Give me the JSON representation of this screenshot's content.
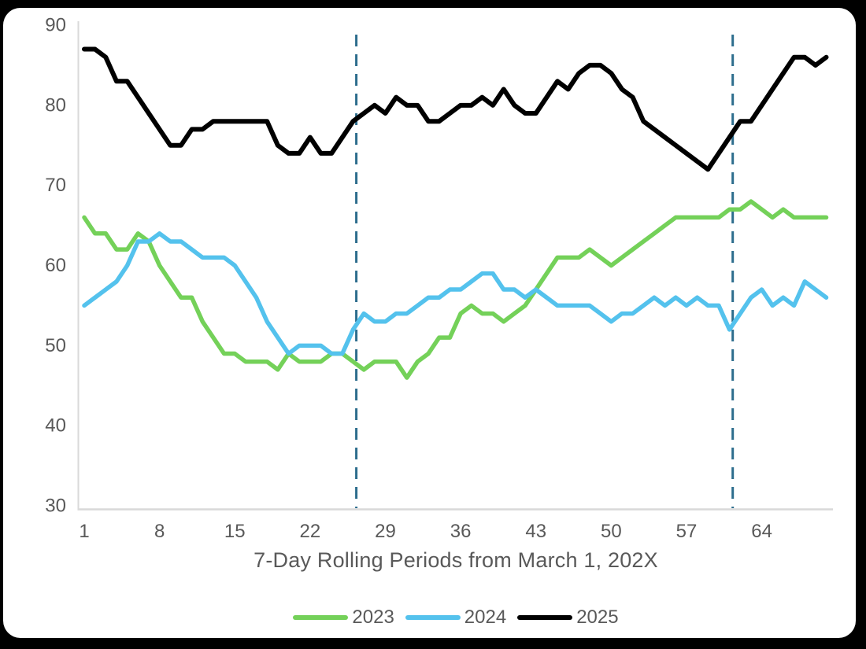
{
  "chart_data": {
    "type": "line",
    "title": "",
    "xlabel": "7-Day Rolling Periods from March 1, 202X",
    "ylabel": "",
    "xlim": [
      1,
      70
    ],
    "ylim": [
      30,
      90
    ],
    "xticks": [
      1,
      8,
      15,
      22,
      29,
      36,
      43,
      50,
      57,
      64
    ],
    "yticks": [
      30,
      40,
      50,
      60,
      70,
      80,
      90
    ],
    "grid": false,
    "legend_position": "bottom",
    "x": [
      1,
      2,
      3,
      4,
      5,
      6,
      7,
      8,
      9,
      10,
      11,
      12,
      13,
      14,
      15,
      16,
      17,
      18,
      19,
      20,
      21,
      22,
      23,
      24,
      25,
      26,
      27,
      28,
      29,
      30,
      31,
      32,
      33,
      34,
      35,
      36,
      37,
      38,
      39,
      40,
      41,
      42,
      43,
      44,
      45,
      46,
      47,
      48,
      49,
      50,
      51,
      52,
      53,
      54,
      55,
      56,
      57,
      58,
      59,
      60,
      61,
      62,
      63,
      64,
      65,
      66,
      67,
      68,
      69,
      70
    ],
    "series": [
      {
        "name": "2023",
        "color": "#74D159",
        "values": [
          66,
          64,
          64,
          62,
          62,
          64,
          63,
          60,
          58,
          56,
          56,
          53,
          51,
          49,
          49,
          48,
          48,
          48,
          47,
          49,
          48,
          48,
          48,
          49,
          49,
          48,
          47,
          48,
          48,
          48,
          46,
          48,
          49,
          51,
          51,
          54,
          55,
          54,
          54,
          53,
          54,
          55,
          57,
          59,
          61,
          61,
          61,
          62,
          61,
          60,
          61,
          62,
          63,
          64,
          65,
          66,
          66,
          66,
          66,
          66,
          67,
          67,
          68,
          67,
          66,
          67,
          66,
          66,
          66,
          66
        ]
      },
      {
        "name": "2024",
        "color": "#54C2ED",
        "values": [
          55,
          56,
          57,
          58,
          60,
          63,
          63,
          64,
          63,
          63,
          62,
          61,
          61,
          61,
          60,
          58,
          56,
          53,
          51,
          49,
          50,
          50,
          50,
          49,
          49,
          52,
          54,
          53,
          53,
          54,
          54,
          55,
          56,
          56,
          57,
          57,
          58,
          59,
          59,
          57,
          57,
          56,
          57,
          56,
          55,
          55,
          55,
          55,
          54,
          53,
          54,
          54,
          55,
          56,
          55,
          56,
          55,
          56,
          55,
          55,
          52,
          54,
          56,
          57,
          55,
          56,
          55,
          58,
          57,
          56
        ]
      },
      {
        "name": "2025",
        "color": "#000000",
        "values": [
          87,
          87,
          86,
          83,
          83,
          81,
          79,
          77,
          75,
          75,
          77,
          77,
          78,
          78,
          78,
          78,
          78,
          78,
          75,
          74,
          74,
          76,
          74,
          74,
          76,
          78,
          79,
          80,
          79,
          81,
          80,
          80,
          78,
          78,
          79,
          80,
          80,
          81,
          80,
          82,
          80,
          79,
          79,
          81,
          83,
          82,
          84,
          85,
          85,
          84,
          82,
          81,
          78,
          77,
          76,
          75,
          74,
          73,
          72,
          74,
          76,
          78,
          78,
          80,
          82,
          84,
          86,
          86,
          85,
          86
        ]
      }
    ],
    "reference_lines": [
      {
        "x": 26.3,
        "style": "dashed",
        "color": "#2D6D8D"
      },
      {
        "x": 61.3,
        "style": "dashed",
        "color": "#2D6D8D"
      }
    ],
    "colors": {
      "axis_text": "#595959",
      "axis_line": "#D9D9D9",
      "frame": "#000000",
      "background": "#FFFFFF"
    }
  }
}
